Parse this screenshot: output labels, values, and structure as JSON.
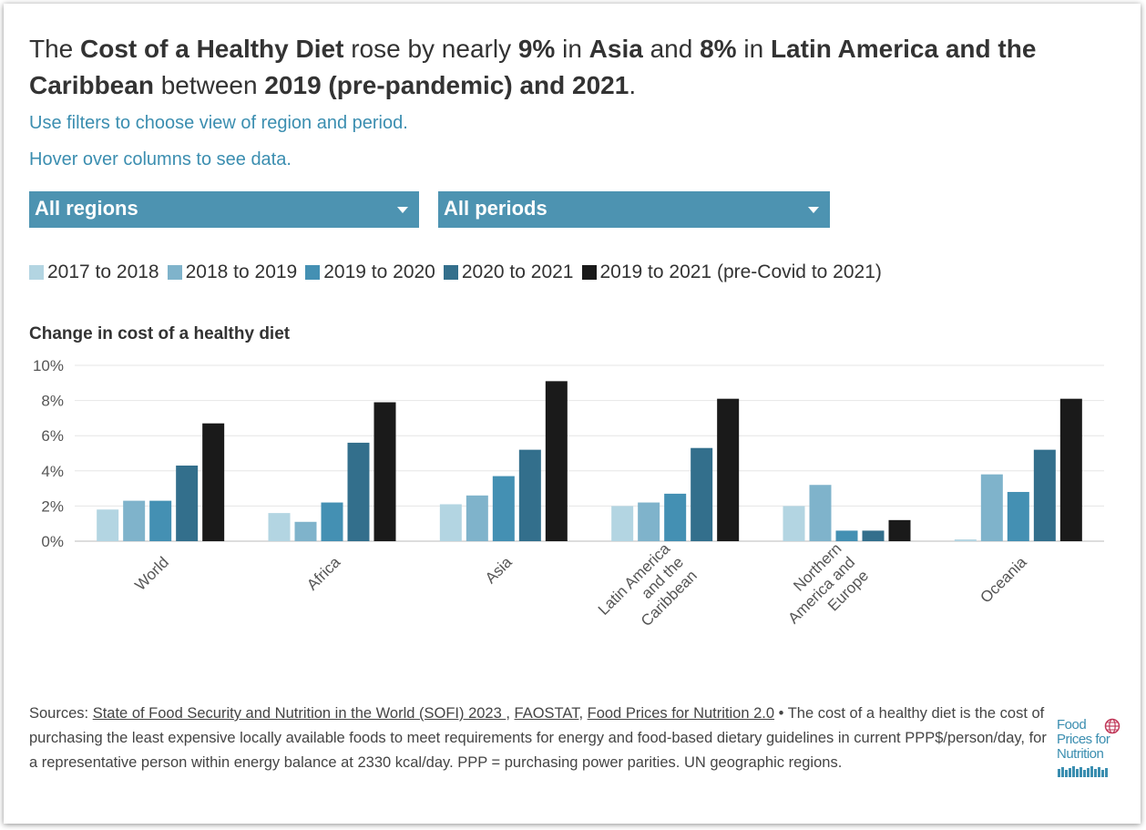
{
  "headline": {
    "p1": "The ",
    "b1": "Cost of a Healthy Diet",
    "p2": " rose by nearly ",
    "b2": "9%",
    "p3": " in ",
    "b3": "Asia",
    "p4": " and ",
    "b4": "8%",
    "p5": " in ",
    "b5": "Latin America and the Caribbean",
    "p6": " between ",
    "b6": "2019 (pre-pandemic) and 2021",
    "p7": "."
  },
  "hints": {
    "filters": "Use filters to choose view of region and period.",
    "hover": "Hover over columns to see data."
  },
  "filters": {
    "region": "All regions",
    "period": "All periods"
  },
  "colors": {
    "accent": "#4d93b1",
    "series": [
      "#b3d5e2",
      "#7fb3cb",
      "#4490b3",
      "#336f8c",
      "#1a1a1a"
    ]
  },
  "chart_data": {
    "type": "bar",
    "title": "Change in cost of a healthy diet",
    "categories": [
      "World",
      "Africa",
      "Asia",
      "Latin America and the Caribbean",
      "Northern America and Europe",
      "Oceania"
    ],
    "category_lines": [
      [
        "World"
      ],
      [
        "Africa"
      ],
      [
        "Asia"
      ],
      [
        "Latin America",
        "and the",
        "Caribbean"
      ],
      [
        "Northern",
        "America and",
        "Europe"
      ],
      [
        "Oceania"
      ]
    ],
    "series": [
      {
        "name": "2017 to 2018",
        "values": [
          1.8,
          1.6,
          2.1,
          2.0,
          2.0,
          0.1
        ]
      },
      {
        "name": "2018 to 2019",
        "values": [
          2.3,
          1.1,
          2.6,
          2.2,
          3.2,
          3.8
        ]
      },
      {
        "name": "2019 to 2020",
        "values": [
          2.3,
          2.2,
          3.7,
          2.7,
          0.6,
          2.8
        ]
      },
      {
        "name": "2020 to 2021",
        "values": [
          4.3,
          5.6,
          5.2,
          5.3,
          0.6,
          5.2
        ]
      },
      {
        "name": "2019 to 2021 (pre-Covid to 2021)",
        "values": [
          6.7,
          7.9,
          9.1,
          8.1,
          1.2,
          8.1
        ]
      }
    ],
    "yticks": [
      "0%",
      "2%",
      "4%",
      "6%",
      "8%",
      "10%"
    ],
    "ylim": [
      0,
      10
    ],
    "grid": true,
    "legend": "top"
  },
  "sources": {
    "label": "Sources: ",
    "link1": "State of Food Security and Nutrition in the World (SOFI) 2023 ",
    "sep1": ", ",
    "link2": "FAOSTAT",
    "sep2": ", ",
    "link3": "Food Prices for Nutrition 2.0",
    "text": " • The cost of a healthy diet is the cost of purchasing the least expensive locally available foods to meet requirements for energy and food-based dietary guidelines in current PPP$/person/day, for a representative person within energy balance at 2330 kcal/day. PPP = purchasing power parities. UN geographic regions."
  },
  "logo": {
    "line1": "Food",
    "line2": "Prices for",
    "line3": "Nutrition"
  }
}
